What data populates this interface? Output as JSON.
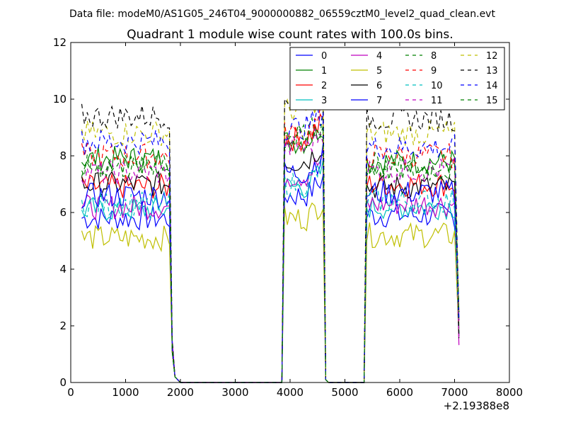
{
  "chart_data": {
    "type": "line",
    "suptitle": "Data file: modeM0/AS1G05_246T04_9000000882_06559cztM0_level2_quad_clean.evt",
    "title": "Quadrant 1 module wise count rates with 100.0s bins.",
    "xlabel": "",
    "ylabel": "",
    "x_offset_label": "+2.19388e8",
    "xlim": [
      0,
      8000
    ],
    "ylim": [
      0,
      12
    ],
    "x_ticks": [
      0,
      1000,
      2000,
      3000,
      4000,
      5000,
      6000,
      7000,
      8000
    ],
    "y_ticks": [
      0,
      2,
      4,
      6,
      8,
      10,
      12
    ],
    "grid": false,
    "legend_position": "top-right",
    "legend_columns": 4,
    "segments": [
      {
        "start": 200,
        "end": 1800
      },
      {
        "start": 3900,
        "end": 4600
      },
      {
        "start": 5400,
        "end": 7000
      }
    ],
    "gap_points": [
      [
        1800,
        0.9
      ],
      [
        1850,
        0.7
      ],
      [
        1900,
        0.3
      ],
      [
        2000,
        0
      ],
      [
        3000,
        0
      ],
      [
        3850,
        0
      ],
      [
        4650,
        0.2
      ],
      [
        4700,
        0
      ],
      [
        5000,
        0
      ],
      [
        5350,
        0
      ],
      [
        7100,
        1.7
      ]
    ],
    "series": [
      {
        "name": "0",
        "color": "#0000ff",
        "dash": "solid",
        "levels": [
          5.8,
          6.6,
          5.9
        ]
      },
      {
        "name": "1",
        "color": "#008000",
        "dash": "solid",
        "levels": [
          7.9,
          8.5,
          7.8
        ]
      },
      {
        "name": "2",
        "color": "#ff0000",
        "dash": "solid",
        "levels": [
          6.9,
          8.6,
          7.0
        ]
      },
      {
        "name": "3",
        "color": "#00bfbf",
        "dash": "solid",
        "levels": [
          6.1,
          6.9,
          6.2
        ]
      },
      {
        "name": "4",
        "color": "#bf00bf",
        "dash": "solid",
        "levels": [
          6.2,
          7.3,
          6.3
        ]
      },
      {
        "name": "5",
        "color": "#bfbf00",
        "dash": "solid",
        "levels": [
          5.1,
          5.8,
          5.2
        ]
      },
      {
        "name": "6",
        "color": "#000000",
        "dash": "solid",
        "levels": [
          7.0,
          7.8,
          6.9
        ]
      },
      {
        "name": "7",
        "color": "#0000ff",
        "dash": "solid",
        "levels": [
          6.6,
          7.4,
          6.7
        ]
      },
      {
        "name": "8",
        "color": "#008000",
        "dash": "dashed",
        "levels": [
          7.7,
          8.7,
          7.7
        ]
      },
      {
        "name": "9",
        "color": "#ff0000",
        "dash": "dashed",
        "levels": [
          8.0,
          8.8,
          8.0
        ]
      },
      {
        "name": "10",
        "color": "#00bfbf",
        "dash": "dashed",
        "levels": [
          6.3,
          7.0,
          6.4
        ]
      },
      {
        "name": "11",
        "color": "#bf00bf",
        "dash": "dashed",
        "levels": [
          7.4,
          8.3,
          7.5
        ]
      },
      {
        "name": "12",
        "color": "#bfbf00",
        "dash": "dashed",
        "levels": [
          8.8,
          9.6,
          8.8
        ]
      },
      {
        "name": "13",
        "color": "#000000",
        "dash": "dashed",
        "levels": [
          9.4,
          10.0,
          9.3
        ]
      },
      {
        "name": "14",
        "color": "#0000ff",
        "dash": "dashed",
        "levels": [
          8.5,
          9.0,
          8.3
        ]
      },
      {
        "name": "15",
        "color": "#008000",
        "dash": "dashed",
        "levels": [
          7.6,
          8.5,
          7.5
        ]
      }
    ]
  }
}
